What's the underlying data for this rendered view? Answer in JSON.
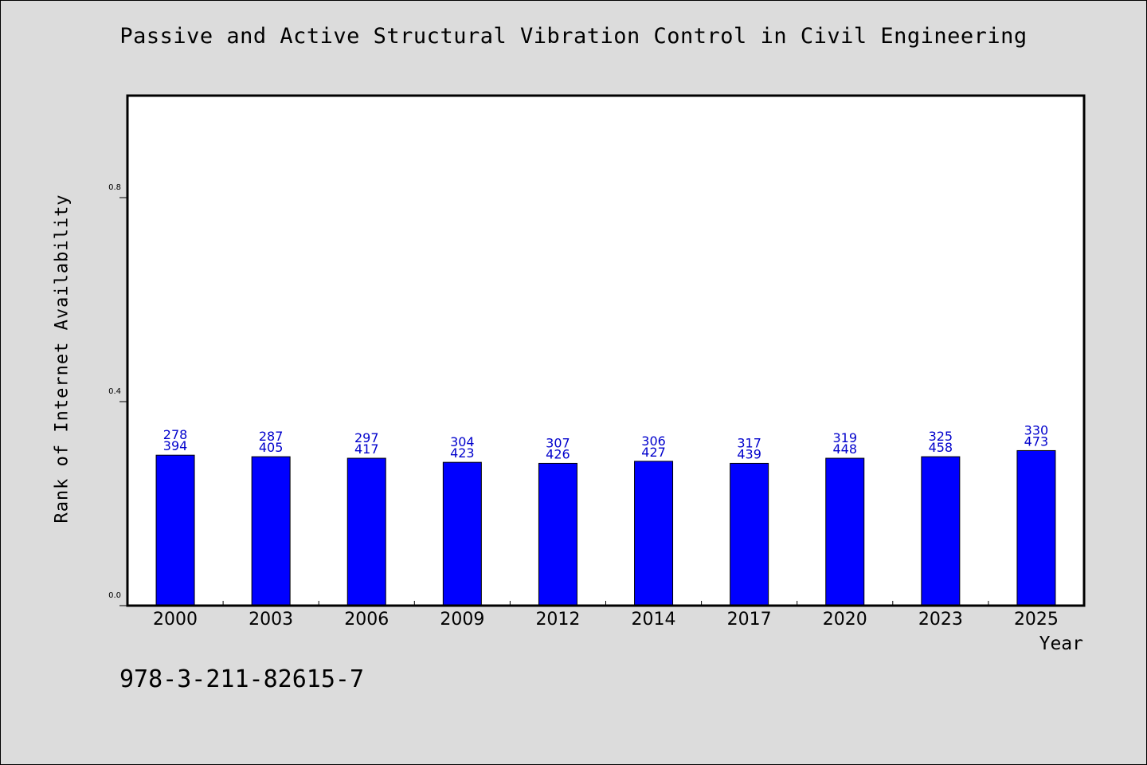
{
  "colors": {
    "background": "#dcdcdc",
    "plot_background": "#ffffff",
    "bar_fill": "#0000ff",
    "bar_label": "#0000cc",
    "axis": "#000000"
  },
  "isbn": "978-3-211-82615-7",
  "chart_data": {
    "type": "bar",
    "title": "Passive and Active Structural Vibration Control in Civil Engineering",
    "xlabel": "Year",
    "ylabel": "Rank of Internet Availability",
    "categories": [
      "2000",
      "2003",
      "2006",
      "2009",
      "2012",
      "2014",
      "2017",
      "2020",
      "2023",
      "2025"
    ],
    "values": [
      0.295,
      0.292,
      0.289,
      0.281,
      0.279,
      0.283,
      0.279,
      0.289,
      0.292,
      0.304
    ],
    "labels_top": [
      "278",
      "287",
      "297",
      "304",
      "307",
      "306",
      "317",
      "319",
      "325",
      "330"
    ],
    "labels_bottom": [
      "394",
      "405",
      "417",
      "423",
      "426",
      "427",
      "439",
      "448",
      "458",
      "473"
    ],
    "yticks": [
      0.0,
      0.4,
      0.8
    ],
    "ytick_labels": [
      "0.0",
      "0.4",
      "0.8"
    ],
    "ylim": [
      0,
      1.0
    ],
    "grid": false,
    "legend": "none"
  }
}
